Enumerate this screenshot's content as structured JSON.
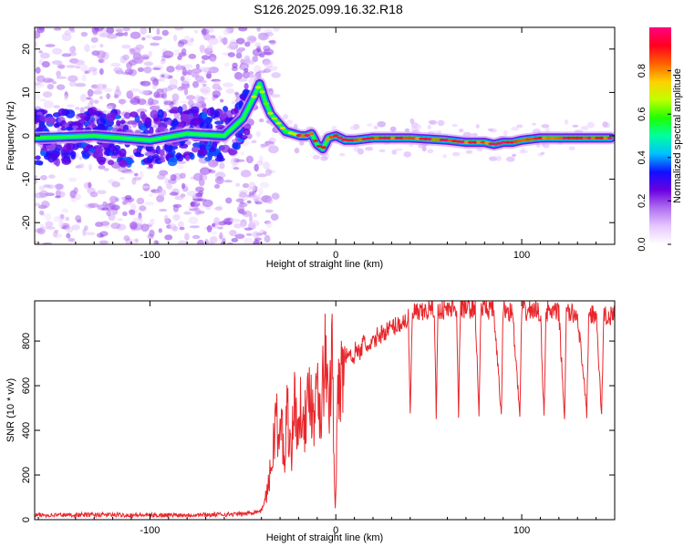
{
  "chart_data": [
    {
      "type": "heatmap",
      "title": "S126.2025.099.16.32.R18",
      "xlabel": "Height of straight line (km)",
      "ylabel": "Frequency (Hz)",
      "xlim": [
        -162,
        150
      ],
      "ylim": [
        -25,
        25
      ],
      "xticks": [
        -100,
        0,
        100
      ],
      "yticks": [
        -20,
        -10,
        0,
        10,
        20
      ],
      "grid": false,
      "description_of_ridge": "strongest spectral ridge frequency (Hz) vs height (km)",
      "ridge": {
        "x": [
          -162,
          -130,
          -100,
          -80,
          -60,
          -50,
          -44,
          -41,
          -38,
          -35,
          -31,
          -27,
          -23,
          -19,
          -16,
          -13,
          -10,
          -7,
          -4,
          0,
          5,
          10,
          20,
          40,
          60,
          70,
          80,
          85,
          90,
          95,
          100,
          110,
          120,
          130,
          140,
          148
        ],
        "y": [
          -0.5,
          0,
          -1,
          0.5,
          0,
          4,
          9,
          12,
          8,
          5,
          3,
          1,
          0.5,
          0,
          0,
          0.5,
          -2,
          -3,
          -0.5,
          0,
          -1,
          -1,
          -0.5,
          -0.5,
          -1,
          -1.5,
          -1.5,
          -2,
          -1.5,
          -1.5,
          -1,
          -0.5,
          -0.5,
          -0.5,
          -0.5,
          -0.5
        ]
      },
      "colorbar": {
        "label": "Normalized spectral amplitude",
        "range": [
          0,
          1
        ],
        "ticks": [
          "0.0",
          "0.2",
          "0.4",
          "0.6",
          "0.8"
        ],
        "colors": [
          "#ffffff",
          "#e6c8ff",
          "#b070f0",
          "#6a00e0",
          "#1010ff",
          "#00c0ff",
          "#00ffa0",
          "#20ff00",
          "#c0ff00",
          "#ffd000",
          "#ff6000",
          "#ff0020",
          "#ff0080"
        ]
      }
    },
    {
      "type": "line",
      "title": "",
      "xlabel": "Height of straight line (km)",
      "ylabel": "SNR (10 * v/v)",
      "xlim": [
        -162,
        150
      ],
      "ylim": [
        0,
        980
      ],
      "xticks": [
        -100,
        0,
        100
      ],
      "yticks": [
        0,
        200,
        400,
        600,
        800
      ],
      "grid": false,
      "color": "#e8262b",
      "series": [
        {
          "x": [
            -162,
            -130,
            -100,
            -70,
            -50,
            -40,
            -37,
            -34,
            -32,
            -31,
            -29,
            -28,
            -26,
            -24,
            -22,
            -20,
            -18,
            -16,
            -14,
            -12,
            -10,
            -8,
            -6,
            -4,
            -2,
            -1,
            -0.3,
            0.3,
            1,
            3,
            5,
            7,
            9,
            11,
            13,
            15,
            18,
            22,
            26,
            30,
            35,
            39,
            40,
            41,
            42,
            45,
            50,
            53,
            54,
            55,
            56,
            60,
            65,
            66,
            67,
            68,
            70,
            75,
            77,
            78,
            79,
            80,
            85,
            89,
            90,
            91,
            92,
            95,
            99,
            100,
            101,
            102,
            105,
            110,
            112,
            113,
            114,
            115,
            120,
            123,
            124,
            125,
            126,
            130,
            135,
            136,
            137,
            138,
            140,
            143,
            144,
            145,
            146,
            150
          ],
          "y": [
            20,
            22,
            20,
            22,
            25,
            40,
            120,
            280,
            520,
            300,
            450,
            250,
            500,
            300,
            550,
            350,
            600,
            380,
            650,
            420,
            700,
            450,
            750,
            480,
            780,
            300,
            60,
            250,
            500,
            650,
            720,
            760,
            700,
            780,
            740,
            800,
            760,
            820,
            840,
            860,
            880,
            900,
            460,
            880,
            930,
            920,
            940,
            945,
            460,
            930,
            945,
            940,
            950,
            470,
            940,
            950,
            945,
            950,
            460,
            940,
            945,
            950,
            930,
            470,
            945,
            940,
            935,
            930,
            460,
            940,
            935,
            930,
            940,
            930,
            460,
            920,
            935,
            930,
            925,
            460,
            920,
            930,
            920,
            920,
            470,
            915,
            925,
            915,
            920,
            460,
            910,
            920,
            900,
            920
          ]
        }
      ]
    }
  ]
}
